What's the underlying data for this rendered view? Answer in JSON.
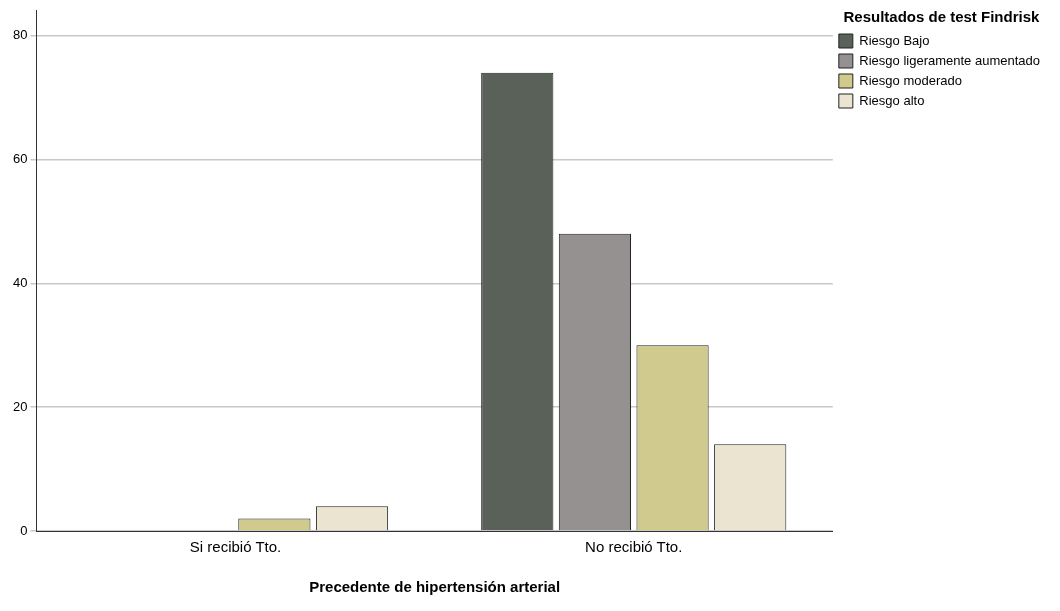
{
  "chart_data": {
    "type": "bar",
    "xlabel": "Precedente de hipertensión arterial",
    "legend_title": "Resultados de test Findrisk",
    "categories": [
      "Si recibió Tto.",
      "No recibió Tto."
    ],
    "series": [
      {
        "name": "Riesgo Bajo",
        "color": "#596159",
        "values": [
          0,
          74
        ]
      },
      {
        "name": "Riesgo ligeramente aumentado",
        "color": "#959190",
        "values": [
          0,
          48
        ]
      },
      {
        "name": "Riesgo moderado",
        "color": "#d0ca8e",
        "values": [
          2,
          30
        ]
      },
      {
        "name": "Riesgo alto",
        "color": "#ebe4d0",
        "values": [
          4,
          14
        ]
      }
    ],
    "ylim": [
      0,
      84
    ],
    "yticks": [
      0,
      20,
      40,
      60,
      80
    ],
    "grid": "y",
    "legend": "top right"
  }
}
